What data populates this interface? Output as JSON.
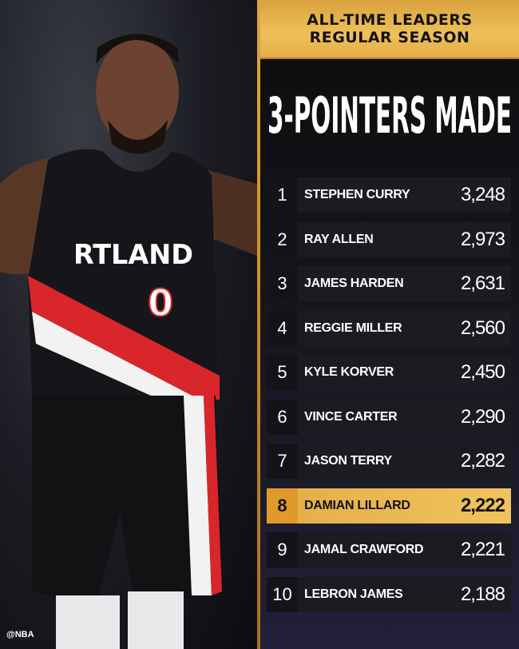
{
  "header": {
    "line1": "ALL-TIME LEADERS",
    "line2": "REGULAR SEASON"
  },
  "title": "3-POINTERS MADE",
  "photo": {
    "jersey_text": "RTLAND",
    "jersey_number": "0",
    "watermark": "@NBA"
  },
  "colors": {
    "gold": "#e9b650",
    "dark": "#141419",
    "jersey_red": "#d8262b"
  },
  "leaders": [
    {
      "rank": "1",
      "name": "STEPHEN CURRY",
      "value": "3,248"
    },
    {
      "rank": "2",
      "name": "RAY ALLEN",
      "value": "2,973"
    },
    {
      "rank": "3",
      "name": "JAMES HARDEN",
      "value": "2,631"
    },
    {
      "rank": "4",
      "name": "REGGIE MILLER",
      "value": "2,560"
    },
    {
      "rank": "5",
      "name": "KYLE KORVER",
      "value": "2,450"
    },
    {
      "rank": "6",
      "name": "VINCE CARTER",
      "value": "2,290"
    },
    {
      "rank": "7",
      "name": "JASON TERRY",
      "value": "2,282"
    },
    {
      "rank": "8",
      "name": "DAMIAN LILLARD",
      "value": "2,222",
      "highlighted": true
    },
    {
      "rank": "9",
      "name": "JAMAL CRAWFORD",
      "value": "2,221"
    },
    {
      "rank": "10",
      "name": "LEBRON JAMES",
      "value": "2,188"
    }
  ]
}
